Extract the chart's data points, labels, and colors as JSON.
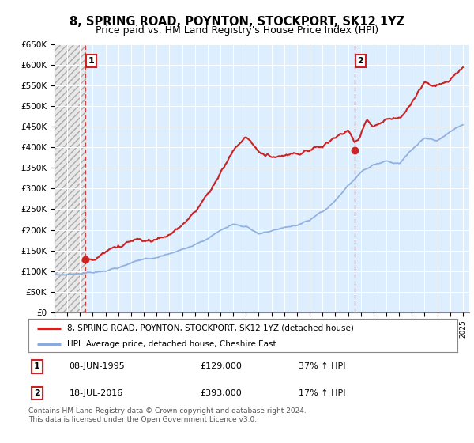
{
  "title": "8, SPRING ROAD, POYNTON, STOCKPORT, SK12 1YZ",
  "subtitle": "Price paid vs. HM Land Registry's House Price Index (HPI)",
  "ylabel_ticks": [
    "£0",
    "£50K",
    "£100K",
    "£150K",
    "£200K",
    "£250K",
    "£300K",
    "£350K",
    "£400K",
    "£450K",
    "£500K",
    "£550K",
    "£600K",
    "£650K"
  ],
  "ytick_values": [
    0,
    50000,
    100000,
    150000,
    200000,
    250000,
    300000,
    350000,
    400000,
    450000,
    500000,
    550000,
    600000,
    650000
  ],
  "ylim": [
    0,
    650000
  ],
  "xlim_start": 1993.0,
  "xlim_end": 2025.5,
  "hatch_end": 1995.5,
  "transaction1_x": 1995.44,
  "transaction1_y": 129000,
  "transaction2_x": 2016.54,
  "transaction2_y": 393000,
  "red_line_color": "#cc2222",
  "blue_line_color": "#88aadd",
  "background_color": "#ddeeff",
  "legend_label1": "8, SPRING ROAD, POYNTON, STOCKPORT, SK12 1YZ (detached house)",
  "legend_label2": "HPI: Average price, detached house, Cheshire East",
  "table_row1": [
    "1",
    "08-JUN-1995",
    "£129,000",
    "37% ↑ HPI"
  ],
  "table_row2": [
    "2",
    "18-JUL-2016",
    "£393,000",
    "17% ↑ HPI"
  ],
  "footer": "Contains HM Land Registry data © Crown copyright and database right 2024.\nThis data is licensed under the Open Government Licence v3.0.",
  "title_fontsize": 10.5,
  "subtitle_fontsize": 9
}
